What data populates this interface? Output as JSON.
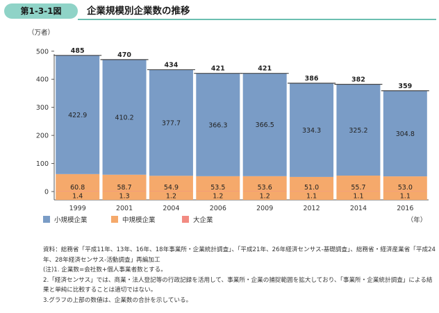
{
  "figure": {
    "number": "第1-3-1図",
    "title": "企業規模別企業数の推移"
  },
  "chart_data": {
    "type": "bar",
    "stacked": true,
    "categories": [
      "1999",
      "2001",
      "2004",
      "2006",
      "2009",
      "2012",
      "2014",
      "2016"
    ],
    "series": [
      {
        "name": "大企業",
        "color": "#f28b82",
        "values": [
          1.4,
          1.3,
          1.2,
          1.2,
          1.2,
          1.1,
          1.1,
          1.1
        ]
      },
      {
        "name": "中規模企業",
        "color": "#f5a96b",
        "values": [
          60.8,
          58.7,
          54.9,
          53.5,
          53.6,
          51.0,
          55.7,
          53.0
        ]
      },
      {
        "name": "小規模企業",
        "color": "#7a9cc6",
        "values": [
          422.9,
          410.2,
          377.7,
          366.3,
          366.5,
          334.3,
          325.2,
          304.8
        ]
      }
    ],
    "bottom_labels": [
      "1.4",
      "1.3",
      "1.2",
      "1.2",
      "1.2",
      "1.1",
      "1.1",
      "1.1"
    ],
    "totals": [
      485,
      470,
      434,
      421,
      421,
      386,
      382,
      359
    ],
    "ylabel": "（万者）",
    "xlabel": "（年）",
    "ylim": [
      0,
      540
    ],
    "yticks": [
      0,
      100,
      200,
      300,
      400,
      500
    ],
    "grid": false,
    "legend_position": "bottom"
  },
  "legend": [
    {
      "label": "小規模企業",
      "color": "#7a9cc6"
    },
    {
      "label": "中規模企業",
      "color": "#f5a96b"
    },
    {
      "label": "大企業",
      "color": "#f28b82"
    }
  ],
  "notes": [
    "資料：総務省「平成11年、13年、16年、18年事業所・企業統計調査」、「平成21年、26年経済センサス‐基礎調査」、総務省・経済産業省「平成24年、28年経済センサス‐活動調査」再編加工",
    "(注)1. 企業数=会社数+個人事業者数とする。",
    "2.「経済センサス」では、商業・法人登記等の行政記録を活用して、事業所・企業の捕捉範囲を拡大しており、「事業所・企業統計調査」による結果と単純に比較することは適切ではない。",
    "3.グラフの上部の数値は、企業数の合計を示している。"
  ]
}
